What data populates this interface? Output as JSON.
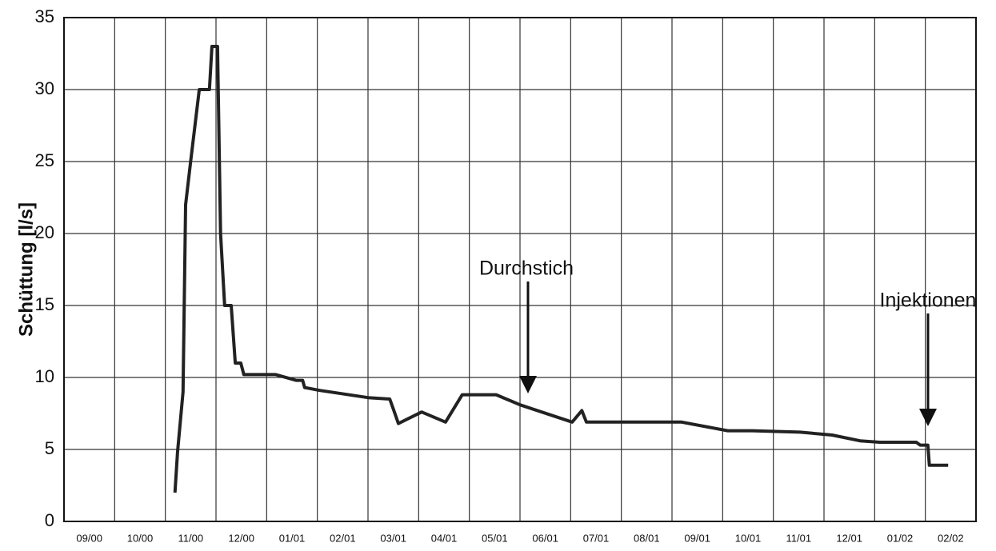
{
  "chart_data": {
    "type": "line",
    "y_label": "Schüttung [l/s]",
    "categories": [
      "09/00",
      "10/00",
      "11/00",
      "12/00",
      "01/01",
      "02/01",
      "03/01",
      "04/01",
      "05/01",
      "06/01",
      "07/01",
      "08/01",
      "09/01",
      "10/01",
      "11/01",
      "12/01",
      "01/02",
      "02/02"
    ],
    "xlim": [
      0,
      18
    ],
    "ylim": [
      0,
      35
    ],
    "yticks": [
      0,
      5,
      10,
      15,
      20,
      25,
      30,
      35
    ],
    "grid": true,
    "series": [
      {
        "name": "Schüttung",
        "color": "#222222",
        "x": [
          2.19,
          2.24,
          2.35,
          2.4,
          2.5,
          2.67,
          2.87,
          2.92,
          3.03,
          3.09,
          3.17,
          3.3,
          3.38,
          3.49,
          3.55,
          4.18,
          4.58,
          4.71,
          4.75,
          5.05,
          6.0,
          6.43,
          6.5,
          6.6,
          7.06,
          7.53,
          7.86,
          8.53,
          9.0,
          10.03,
          10.22,
          10.31,
          12.19,
          13.1,
          13.58,
          14.53,
          15.16,
          15.71,
          16.1,
          16.82,
          16.9,
          17.05,
          17.08,
          17.45
        ],
        "values": [
          2,
          4.8,
          9,
          22,
          25,
          30,
          30,
          33,
          33,
          20,
          15,
          15,
          11,
          11,
          10.2,
          10.2,
          9.8,
          9.8,
          9.3,
          9.1,
          8.6,
          8.5,
          7.8,
          6.8,
          7.6,
          6.9,
          8.8,
          8.8,
          8.1,
          6.9,
          7.7,
          6.9,
          6.9,
          6.3,
          6.3,
          6.2,
          6.0,
          5.6,
          5.5,
          5.5,
          5.3,
          5.3,
          3.9,
          3.9
        ]
      }
    ],
    "annotations": [
      "Durchstich",
      "Injektionen"
    ]
  }
}
